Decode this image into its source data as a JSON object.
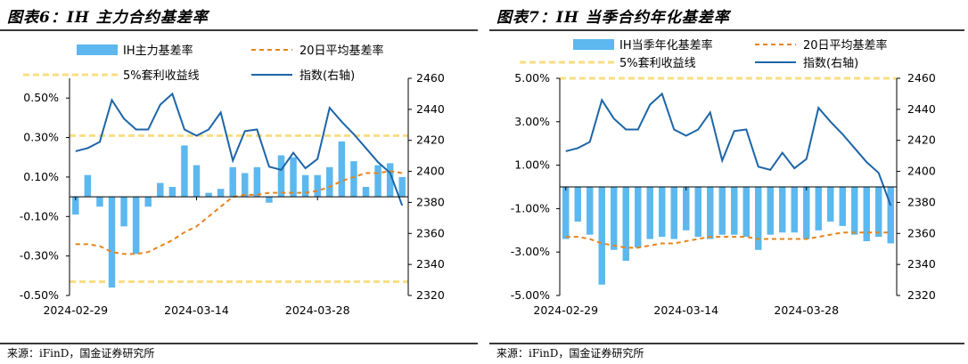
{
  "colors": {
    "bar": "#5cb8ee",
    "ma20": "#e8841a",
    "threshold": "#f9de84",
    "index": "#1d65a8",
    "axis": "#000000",
    "rule": "#3a3a3a"
  },
  "footer": {
    "left_source": "来源：iFinD，国金证券研究所",
    "right_source": "来源：iFinD，国金证券研究所"
  },
  "chart_data": [
    {
      "type": "bar",
      "title": "图表6：IH 主力合约基差率",
      "legend": {
        "bar": "IH主力基差率",
        "ma20": "20日平均基差率",
        "threshold": "5%套利收益线",
        "index": "指数(右轴)"
      },
      "x_tick_labels": [
        "2024-02-29",
        "2024-03-14",
        "2024-03-28"
      ],
      "x_tick_positions": [
        0,
        10,
        20
      ],
      "y_left": {
        "min": -0.5,
        "max": 0.6,
        "ticks": [
          0.5,
          0.3,
          0.1,
          -0.1,
          -0.3,
          -0.5
        ],
        "tick_labels": [
          "0.50%",
          "0.30%",
          "0.10%",
          "-0.10%",
          "-0.30%",
          "-0.50%"
        ]
      },
      "y_right": {
        "min": 2320,
        "max": 2460,
        "ticks": [
          2320,
          2340,
          2360,
          2380,
          2400,
          2420,
          2440,
          2460
        ],
        "tick_labels": [
          "2320",
          "2340",
          "2360",
          "2380",
          "2400",
          "2420",
          "2440",
          "2460"
        ]
      },
      "threshold_lines": [
        0.31,
        -0.43
      ],
      "series": [
        {
          "name": "IH主力基差率",
          "kind": "bar",
          "axis": "left",
          "values": [
            -0.09,
            0.11,
            -0.05,
            -0.46,
            -0.15,
            -0.29,
            -0.05,
            0.07,
            0.05,
            0.26,
            0.16,
            0.02,
            0.04,
            0.15,
            0.12,
            0.15,
            -0.03,
            0.21,
            0.2,
            0.11,
            0.11,
            0.15,
            0.28,
            0.18,
            0.05,
            0.16,
            0.17,
            0.1
          ]
        },
        {
          "name": "20日平均基差率",
          "kind": "line",
          "axis": "left",
          "values": [
            -0.24,
            -0.24,
            -0.25,
            -0.28,
            -0.29,
            -0.29,
            -0.28,
            -0.25,
            -0.22,
            -0.18,
            -0.15,
            -0.1,
            -0.05,
            0.0,
            0.01,
            0.01,
            0.02,
            0.02,
            0.02,
            0.02,
            0.03,
            0.05,
            0.08,
            0.1,
            0.12,
            0.12,
            0.13,
            0.12
          ]
        },
        {
          "name": "指数(右轴)",
          "kind": "line",
          "axis": "right",
          "values": [
            2413,
            2415,
            2419,
            2446,
            2434,
            2427,
            2427,
            2443,
            2450,
            2427,
            2423,
            2427,
            2438,
            2407,
            2426,
            2427,
            2403,
            2401,
            2412,
            2402,
            2408,
            2441,
            2432,
            2424,
            2415,
            2406,
            2399,
            2378
          ]
        }
      ]
    },
    {
      "type": "bar",
      "title": "图表7：IH 当季合约年化基差率",
      "legend": {
        "bar": "IH当季年化基差率",
        "ma20": "20日平均基差率",
        "threshold": "5%套利收益线",
        "index": "指数(右轴)"
      },
      "x_tick_labels": [
        "2024-02-29",
        "2024-03-14",
        "2024-03-28"
      ],
      "x_tick_positions": [
        0,
        10,
        20
      ],
      "y_left": {
        "min": -5.0,
        "max": 5.0,
        "ticks": [
          5.0,
          3.0,
          1.0,
          -1.0,
          -3.0,
          -5.0
        ],
        "tick_labels": [
          "5.00%",
          "3.00%",
          "1.00%",
          "-1.00%",
          "-3.00%",
          "-5.00%"
        ]
      },
      "y_right": {
        "min": 2320,
        "max": 2460,
        "ticks": [
          2320,
          2340,
          2360,
          2380,
          2400,
          2420,
          2440,
          2460
        ],
        "tick_labels": [
          "2320",
          "2340",
          "2360",
          "2380",
          "2400",
          "2420",
          "2440",
          "2460"
        ]
      },
      "threshold_lines": [
        5.0
      ],
      "series": [
        {
          "name": "IH当季年化基差率",
          "kind": "bar",
          "axis": "left",
          "values": [
            -2.4,
            -1.6,
            -2.2,
            -4.5,
            -2.9,
            -3.4,
            -2.8,
            -2.4,
            -2.3,
            -2.4,
            -2.0,
            -2.3,
            -2.4,
            -2.2,
            -2.2,
            -2.3,
            -2.9,
            -2.2,
            -2.1,
            -2.1,
            -2.4,
            -2.0,
            -1.6,
            -1.8,
            -2.2,
            -2.5,
            -2.3,
            -2.6
          ]
        },
        {
          "name": "20日平均基差率",
          "kind": "line",
          "axis": "left",
          "values": [
            -2.3,
            -2.3,
            -2.4,
            -2.6,
            -2.7,
            -2.8,
            -2.8,
            -2.7,
            -2.6,
            -2.6,
            -2.5,
            -2.4,
            -2.3,
            -2.3,
            -2.3,
            -2.3,
            -2.4,
            -2.4,
            -2.4,
            -2.4,
            -2.4,
            -2.3,
            -2.2,
            -2.1,
            -2.1,
            -2.1,
            -2.1,
            -2.1
          ]
        },
        {
          "name": "指数(右轴)",
          "kind": "line",
          "axis": "right",
          "values": [
            2413,
            2415,
            2419,
            2446,
            2434,
            2427,
            2427,
            2443,
            2450,
            2427,
            2423,
            2427,
            2438,
            2407,
            2426,
            2427,
            2403,
            2401,
            2412,
            2402,
            2408,
            2441,
            2432,
            2424,
            2415,
            2406,
            2399,
            2378
          ]
        }
      ]
    }
  ]
}
